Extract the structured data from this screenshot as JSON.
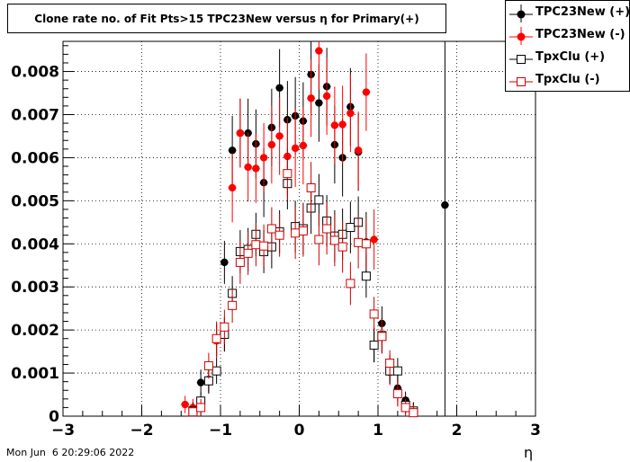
{
  "title": "Clone rate no. of Fit Pts>15 TPC23New versus η for Primary(+)",
  "timestamp": "Mon Jun  6 20:29:06 2022",
  "chart_data": {
    "type": "scatter",
    "title": "Clone rate no. of Fit Pts>15 TPC23New versus η for Primary(+)",
    "xlabel": "η",
    "ylabel": "",
    "xlim": [
      -3,
      3
    ],
    "ylim": [
      0,
      0.0087
    ],
    "x_ticks": [
      -3,
      -2,
      -1,
      0,
      1,
      2,
      3
    ],
    "x_tick_labels": [
      "−3",
      "−2",
      "−1",
      "0",
      "1",
      "2",
      "3"
    ],
    "y_ticks": [
      0,
      0.001,
      0.002,
      0.003,
      0.004,
      0.005,
      0.006,
      0.007,
      0.008
    ],
    "y_tick_labels": [
      "0",
      "0.001",
      "0.002",
      "0.003",
      "0.004",
      "0.005",
      "0.006",
      "0.007",
      "0.008"
    ],
    "grid": true,
    "legend_position": "top-right",
    "series": [
      {
        "name": "TPC23New (+)",
        "color": "#000000",
        "marker": "filled-circle",
        "points": [
          [
            -1.35,
            0.00012,
            0.0002
          ],
          [
            -1.25,
            0.00078,
            0.0003
          ],
          [
            -1.15,
            0.00085,
            0.0003
          ],
          [
            -1.05,
            0.00175,
            0.0004
          ],
          [
            -0.95,
            0.00357,
            0.0005
          ],
          [
            -0.85,
            0.00617,
            0.0008
          ],
          [
            -0.75,
            0.00657,
            0.0008
          ],
          [
            -0.65,
            0.00657,
            0.0008
          ],
          [
            -0.55,
            0.00632,
            0.0008
          ],
          [
            -0.45,
            0.00542,
            0.0008
          ],
          [
            -0.35,
            0.0067,
            0.0009
          ],
          [
            -0.25,
            0.00762,
            0.0009
          ],
          [
            -0.15,
            0.00688,
            0.0009
          ],
          [
            -0.05,
            0.00697,
            0.0009
          ],
          [
            0.05,
            0.00685,
            0.0009
          ],
          [
            0.15,
            0.00793,
            0.0009
          ],
          [
            0.25,
            0.00727,
            0.0009
          ],
          [
            0.35,
            0.00765,
            0.0009
          ],
          [
            0.45,
            0.0063,
            0.0009
          ],
          [
            0.55,
            0.006,
            0.0009
          ],
          [
            0.65,
            0.00718,
            0.0009
          ],
          [
            0.75,
            0.00613,
            0.0009
          ],
          [
            0.85,
            0.00404,
            0.0007
          ],
          [
            0.95,
            0.00165,
            0.0004
          ],
          [
            1.05,
            0.00215,
            0.0004
          ],
          [
            1.15,
            0.00112,
            0.0003
          ],
          [
            1.25,
            0.00065,
            0.0003
          ],
          [
            1.35,
            0.00037,
            0.0002
          ],
          [
            1.45,
            0.00012,
            0.0002
          ],
          [
            1.85,
            0.0049,
            0.008
          ]
        ]
      },
      {
        "name": "TPC23New (-)",
        "color": "#ff0000",
        "marker": "filled-circle",
        "points": [
          [
            -1.45,
            0.00027,
            0.0002
          ],
          [
            -1.35,
            0.0002,
            0.0002
          ],
          [
            -1.25,
            0.00025,
            0.0002
          ],
          [
            -1.15,
            0.00085,
            0.0003
          ],
          [
            -1.05,
            0.00175,
            0.0004
          ],
          [
            -0.95,
            0.0019,
            0.0004
          ],
          [
            -0.85,
            0.0053,
            0.0008
          ],
          [
            -0.75,
            0.00657,
            0.0008
          ],
          [
            -0.65,
            0.00578,
            0.0008
          ],
          [
            -0.55,
            0.00575,
            0.0008
          ],
          [
            -0.45,
            0.006,
            0.0008
          ],
          [
            -0.35,
            0.0063,
            0.0009
          ],
          [
            -0.25,
            0.0065,
            0.0009
          ],
          [
            -0.15,
            0.00603,
            0.0009
          ],
          [
            -0.05,
            0.00622,
            0.0009
          ],
          [
            0.05,
            0.00628,
            0.0009
          ],
          [
            0.15,
            0.00738,
            0.0009
          ],
          [
            0.25,
            0.00848,
            0.0009
          ],
          [
            0.35,
            0.00743,
            0.0009
          ],
          [
            0.45,
            0.00675,
            0.0009
          ],
          [
            0.55,
            0.00677,
            0.0009
          ],
          [
            0.65,
            0.00703,
            0.0009
          ],
          [
            0.75,
            0.00617,
            0.0009
          ],
          [
            0.85,
            0.00752,
            0.0009
          ],
          [
            0.95,
            0.0041,
            0.0007
          ],
          [
            1.05,
            0.00187,
            0.0004
          ],
          [
            1.15,
            0.00102,
            0.0003
          ],
          [
            1.25,
            0.00055,
            0.0003
          ],
          [
            1.35,
            0.00025,
            0.0002
          ],
          [
            1.45,
            0.00012,
            0.0002
          ]
        ]
      },
      {
        "name": "TpxClu (+)",
        "color": "#000000",
        "marker": "open-square",
        "points": [
          [
            -1.35,
            0.00012,
            0.0002
          ],
          [
            -1.25,
            0.00035,
            0.0002
          ],
          [
            -1.15,
            0.00082,
            0.0003
          ],
          [
            -1.05,
            0.00105,
            0.0003
          ],
          [
            -0.95,
            0.0019,
            0.0004
          ],
          [
            -0.85,
            0.00285,
            0.0004
          ],
          [
            -0.75,
            0.00382,
            0.0005
          ],
          [
            -0.65,
            0.00387,
            0.0005
          ],
          [
            -0.55,
            0.00422,
            0.0005
          ],
          [
            -0.45,
            0.00382,
            0.0005
          ],
          [
            -0.35,
            0.00393,
            0.0005
          ],
          [
            -0.25,
            0.00428,
            0.0005
          ],
          [
            -0.15,
            0.0054,
            0.0006
          ],
          [
            -0.05,
            0.0044,
            0.0006
          ],
          [
            0.05,
            0.00435,
            0.0006
          ],
          [
            0.15,
            0.00483,
            0.0006
          ],
          [
            0.25,
            0.00502,
            0.0006
          ],
          [
            0.35,
            0.00453,
            0.0006
          ],
          [
            0.45,
            0.00418,
            0.0006
          ],
          [
            0.55,
            0.00422,
            0.0006
          ],
          [
            0.65,
            0.00438,
            0.0006
          ],
          [
            0.75,
            0.0045,
            0.0006
          ],
          [
            0.85,
            0.00325,
            0.0005
          ],
          [
            0.95,
            0.00165,
            0.0004
          ],
          [
            1.05,
            0.00187,
            0.0004
          ],
          [
            1.15,
            0.00105,
            0.0003
          ],
          [
            1.25,
            0.00105,
            0.0003
          ],
          [
            1.35,
            0.00025,
            0.0002
          ],
          [
            1.45,
            0.00012,
            0.0002
          ]
        ]
      },
      {
        "name": "TpxClu (-)",
        "color": "#cc0000",
        "marker": "open-square",
        "points": [
          [
            -1.35,
            0.0001,
            0.0002
          ],
          [
            -1.25,
            0.0002,
            0.0002
          ],
          [
            -1.15,
            0.00117,
            0.0003
          ],
          [
            -1.05,
            0.0018,
            0.0004
          ],
          [
            -0.95,
            0.00207,
            0.0004
          ],
          [
            -0.85,
            0.00257,
            0.0004
          ],
          [
            -0.75,
            0.00357,
            0.0005
          ],
          [
            -0.65,
            0.00378,
            0.0005
          ],
          [
            -0.55,
            0.00398,
            0.0005
          ],
          [
            -0.45,
            0.00395,
            0.0005
          ],
          [
            -0.35,
            0.00435,
            0.0005
          ],
          [
            -0.25,
            0.0042,
            0.0005
          ],
          [
            -0.15,
            0.00563,
            0.0006
          ],
          [
            -0.05,
            0.00425,
            0.0006
          ],
          [
            0.05,
            0.0043,
            0.0006
          ],
          [
            0.15,
            0.0053,
            0.0006
          ],
          [
            0.25,
            0.0041,
            0.0006
          ],
          [
            0.35,
            0.00435,
            0.0006
          ],
          [
            0.45,
            0.00408,
            0.0006
          ],
          [
            0.55,
            0.00393,
            0.0006
          ],
          [
            0.65,
            0.00308,
            0.0005
          ],
          [
            0.75,
            0.00403,
            0.0006
          ],
          [
            0.85,
            0.004,
            0.0006
          ],
          [
            0.95,
            0.00237,
            0.0004
          ],
          [
            1.05,
            0.00185,
            0.0004
          ],
          [
            1.15,
            0.00123,
            0.0003
          ],
          [
            1.25,
            0.00052,
            0.0003
          ],
          [
            1.35,
            0.0002,
            0.0002
          ],
          [
            1.45,
            8e-05,
            0.0002
          ]
        ]
      }
    ]
  }
}
